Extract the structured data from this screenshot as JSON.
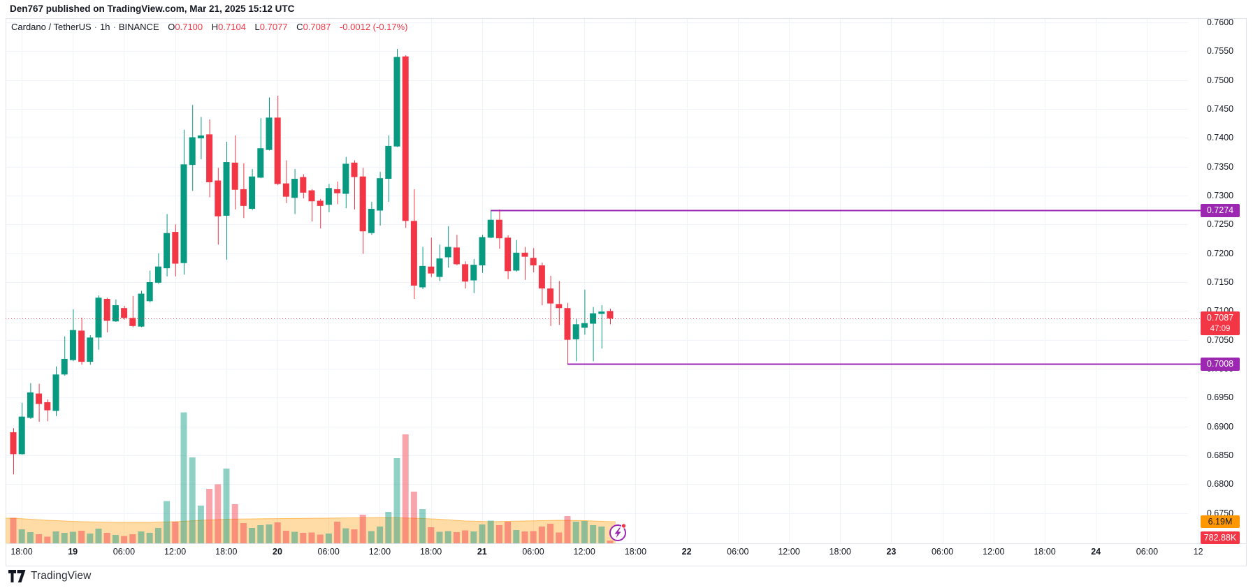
{
  "header": {
    "publication": "Den767 published on TradingView.com, Mar 21, 2025 15:12 UTC"
  },
  "legend": {
    "symbol": "Cardano / TetherUS",
    "separator": "·",
    "interval": "1h",
    "exchange": "BINANCE",
    "open_label": "O",
    "open": "0.7100",
    "high_label": "H",
    "high": "0.7104",
    "low_label": "L",
    "low": "0.7077",
    "close_label": "C",
    "close": "0.7087",
    "change": "-0.0012 (-0.17%)"
  },
  "footer": {
    "logo_text": "TradingView"
  },
  "chart_data": {
    "type": "candlestick+volume",
    "title": "Cardano / TetherUS 1h BINANCE",
    "y_ticks": [
      "0.7600",
      "0.7550",
      "0.7500",
      "0.7450",
      "0.7400",
      "0.7350",
      "0.7300",
      "0.7250",
      "0.7200",
      "0.7150",
      "0.7100",
      "0.7050",
      "0.7000",
      "0.6950",
      "0.6900",
      "0.6850",
      "0.6800",
      "0.6750"
    ],
    "x_ticks": [
      {
        "t": "18:00",
        "d": false
      },
      {
        "t": "19",
        "d": true
      },
      {
        "t": "06:00",
        "d": false
      },
      {
        "t": "12:00",
        "d": false
      },
      {
        "t": "18:00",
        "d": false
      },
      {
        "t": "20",
        "d": true
      },
      {
        "t": "06:00",
        "d": false
      },
      {
        "t": "12:00",
        "d": false
      },
      {
        "t": "18:00",
        "d": false
      },
      {
        "t": "21",
        "d": true
      },
      {
        "t": "06:00",
        "d": false
      },
      {
        "t": "12:00",
        "d": false
      },
      {
        "t": "18:00",
        "d": false
      },
      {
        "t": "22",
        "d": true
      },
      {
        "t": "06:00",
        "d": false
      },
      {
        "t": "12:00",
        "d": false
      },
      {
        "t": "18:00",
        "d": false
      },
      {
        "t": "23",
        "d": true
      },
      {
        "t": "06:00",
        "d": false
      },
      {
        "t": "12:00",
        "d": false
      },
      {
        "t": "18:00",
        "d": false
      },
      {
        "t": "24",
        "d": true
      },
      {
        "t": "06:00",
        "d": false
      },
      {
        "t": "12",
        "d": false
      }
    ],
    "candles": [
      [
        0.689,
        0.6897,
        0.6817,
        0.6852
      ],
      [
        0.6852,
        0.6941,
        0.6851,
        0.6917
      ],
      [
        0.6915,
        0.6975,
        0.6913,
        0.6959
      ],
      [
        0.6957,
        0.6974,
        0.6908,
        0.6939
      ],
      [
        0.6942,
        0.6947,
        0.6909,
        0.6928
      ],
      [
        0.6927,
        0.7004,
        0.6918,
        0.699
      ],
      [
        0.699,
        0.7056,
        0.6988,
        0.7017
      ],
      [
        0.7015,
        0.7103,
        0.7013,
        0.7067
      ],
      [
        0.7066,
        0.7088,
        0.7007,
        0.7012
      ],
      [
        0.7012,
        0.7058,
        0.7007,
        0.7054
      ],
      [
        0.7054,
        0.7127,
        0.7033,
        0.7123
      ],
      [
        0.7121,
        0.7123,
        0.7063,
        0.7083
      ],
      [
        0.7082,
        0.712,
        0.7081,
        0.711
      ],
      [
        0.7105,
        0.7109,
        0.7085,
        0.7088
      ],
      [
        0.7088,
        0.7126,
        0.7072,
        0.7074
      ],
      [
        0.7073,
        0.7135,
        0.7072,
        0.713
      ],
      [
        0.7117,
        0.717,
        0.7115,
        0.715
      ],
      [
        0.7149,
        0.72,
        0.7147,
        0.7177
      ],
      [
        0.7174,
        0.7268,
        0.716,
        0.7235
      ],
      [
        0.7237,
        0.725,
        0.716,
        0.7182
      ],
      [
        0.7183,
        0.7414,
        0.7163,
        0.7354
      ],
      [
        0.7353,
        0.7457,
        0.7308,
        0.7401
      ],
      [
        0.7399,
        0.7436,
        0.7363,
        0.7404
      ],
      [
        0.7406,
        0.7432,
        0.7297,
        0.7323
      ],
      [
        0.7326,
        0.7348,
        0.7215,
        0.7264
      ],
      [
        0.7265,
        0.7393,
        0.7189,
        0.7358
      ],
      [
        0.7357,
        0.7404,
        0.7276,
        0.731
      ],
      [
        0.7311,
        0.7356,
        0.7261,
        0.7282
      ],
      [
        0.7277,
        0.7346,
        0.7275,
        0.7333
      ],
      [
        0.7331,
        0.7434,
        0.733,
        0.7382
      ],
      [
        0.7379,
        0.747,
        0.7378,
        0.7435
      ],
      [
        0.7435,
        0.7473,
        0.7318,
        0.732
      ],
      [
        0.7321,
        0.7361,
        0.7287,
        0.7298
      ],
      [
        0.7296,
        0.7346,
        0.7268,
        0.7329
      ],
      [
        0.7332,
        0.7337,
        0.7295,
        0.7305
      ],
      [
        0.7309,
        0.7311,
        0.7255,
        0.729
      ],
      [
        0.7291,
        0.7294,
        0.7243,
        0.7282
      ],
      [
        0.7284,
        0.732,
        0.7271,
        0.7313
      ],
      [
        0.7311,
        0.7324,
        0.7285,
        0.7304
      ],
      [
        0.7303,
        0.7367,
        0.7278,
        0.7355
      ],
      [
        0.7357,
        0.7361,
        0.7276,
        0.7332
      ],
      [
        0.7333,
        0.7348,
        0.7199,
        0.7238
      ],
      [
        0.7235,
        0.7289,
        0.7232,
        0.7277
      ],
      [
        0.7274,
        0.7341,
        0.7248,
        0.733
      ],
      [
        0.7329,
        0.7404,
        0.7289,
        0.7386
      ],
      [
        0.7385,
        0.7554,
        0.7384,
        0.754
      ],
      [
        0.7541,
        0.7543,
        0.7244,
        0.7256
      ],
      [
        0.7256,
        0.7311,
        0.7121,
        0.7144
      ],
      [
        0.7141,
        0.7211,
        0.7138,
        0.7178
      ],
      [
        0.7177,
        0.7227,
        0.7159,
        0.7165
      ],
      [
        0.7159,
        0.7215,
        0.7152,
        0.7191
      ],
      [
        0.7193,
        0.7247,
        0.7175,
        0.7211
      ],
      [
        0.721,
        0.7232,
        0.7179,
        0.7181
      ],
      [
        0.7181,
        0.7186,
        0.7139,
        0.7151
      ],
      [
        0.7153,
        0.719,
        0.7131,
        0.718
      ],
      [
        0.7179,
        0.7232,
        0.7166,
        0.7228
      ],
      [
        0.7227,
        0.7275,
        0.7226,
        0.7258
      ],
      [
        0.7258,
        0.7276,
        0.7208,
        0.7226
      ],
      [
        0.7227,
        0.7231,
        0.7155,
        0.7169
      ],
      [
        0.717,
        0.7223,
        0.7168,
        0.7201
      ],
      [
        0.7201,
        0.7211,
        0.7154,
        0.7194
      ],
      [
        0.7192,
        0.7209,
        0.7167,
        0.7179
      ],
      [
        0.7179,
        0.7184,
        0.711,
        0.7139
      ],
      [
        0.7139,
        0.7161,
        0.7074,
        0.7113
      ],
      [
        0.7112,
        0.7152,
        0.7076,
        0.7105
      ],
      [
        0.7105,
        0.7114,
        0.7008,
        0.705
      ],
      [
        0.7051,
        0.7087,
        0.7013,
        0.7077
      ],
      [
        0.7071,
        0.7137,
        0.7059,
        0.7079
      ],
      [
        0.7078,
        0.7107,
        0.7013,
        0.7096
      ],
      [
        0.7095,
        0.711,
        0.7035,
        0.7099
      ],
      [
        0.71,
        0.7104,
        0.7077,
        0.7087
      ]
    ],
    "volumes_m": [
      7.3,
      4.0,
      3.2,
      2.6,
      1.9,
      3.4,
      3.0,
      3.3,
      3.6,
      2.8,
      4.2,
      3.0,
      2.4,
      2.1,
      2.6,
      3.4,
      3.0,
      4.4,
      12.1,
      6.2,
      37.5,
      24.6,
      10.8,
      15.6,
      16.9,
      21.4,
      11.2,
      5.8,
      4.4,
      5.2,
      5.4,
      6.0,
      3.6,
      3.3,
      3.0,
      3.1,
      2.5,
      2.8,
      6.2,
      4.3,
      4.0,
      8.2,
      3.5,
      4.8,
      9.0,
      24.4,
      31.2,
      14.8,
      9.8,
      4.6,
      3.3,
      3.5,
      3.2,
      3.7,
      3.4,
      5.4,
      6.5,
      5.2,
      6.2,
      3.8,
      3.4,
      3.5,
      4.8,
      5.6,
      3.1,
      7.8,
      6.2,
      6.4,
      5.2,
      4.8,
      0.78
    ],
    "volume_ma_m": [
      [
        0,
        7.2
      ],
      [
        4,
        6.6
      ],
      [
        8,
        6.2
      ],
      [
        12,
        6.0
      ],
      [
        16,
        6.0
      ],
      [
        19,
        6.2
      ],
      [
        22,
        6.6
      ],
      [
        25,
        6.9
      ],
      [
        28,
        7.0
      ],
      [
        32,
        7.1
      ],
      [
        36,
        7.2
      ],
      [
        40,
        7.3
      ],
      [
        44,
        7.4
      ],
      [
        47,
        7.2
      ],
      [
        50,
        6.9
      ],
      [
        53,
        6.4
      ],
      [
        56,
        6.2
      ],
      [
        60,
        6.4
      ],
      [
        64,
        6.6
      ],
      [
        67,
        6.5
      ],
      [
        70,
        6.2
      ]
    ],
    "price_lines": [
      {
        "label": "0.7274",
        "price": 0.7274,
        "start_index": 56
      },
      {
        "label": "0.7008",
        "price": 0.7008,
        "start_index": 65
      }
    ],
    "last_price": {
      "label": "0.7087",
      "price": 0.7087,
      "countdown": "47:09",
      "direction": "down"
    },
    "volume_axis_labels": {
      "ma": "6.19M",
      "last": "782.88K"
    },
    "ylim": [
      0.67,
      0.76
    ],
    "grid": "on",
    "colors": {
      "up": "#089981",
      "down": "#F23645",
      "vol_up": "rgba(8,153,129,0.45)",
      "vol_down": "rgba(242,54,69,0.45)",
      "ma_fill": "rgba(255,152,0,0.35)",
      "ma_line": "rgba(255,152,0,0.55)",
      "line_purple": "#9C27B0",
      "last_line": "#F23645",
      "grid": "#f0f3fa",
      "frame": "#e0e3eb",
      "text": "#131722"
    }
  }
}
